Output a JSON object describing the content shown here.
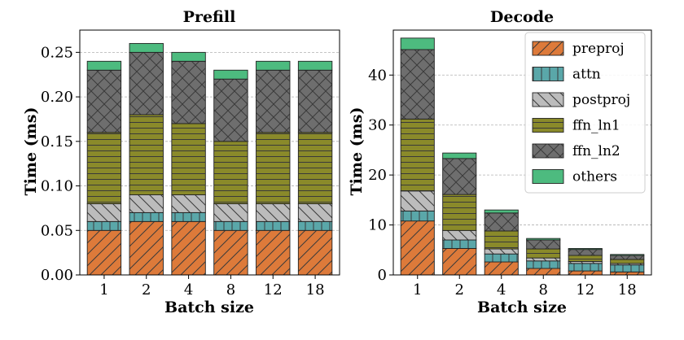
{
  "chart_data": [
    {
      "type": "bar",
      "stacked": true,
      "title": "Prefill",
      "xlabel": "Batch size",
      "ylabel": "Time (ms)",
      "categories": [
        "1",
        "2",
        "4",
        "8",
        "12",
        "18"
      ],
      "ylim": [
        0,
        0.275
      ],
      "yticks": [
        "0.00",
        "0.05",
        "0.10",
        "0.15",
        "0.20",
        "0.25"
      ],
      "grid": "horizontal-dashed",
      "series": [
        {
          "name": "preproj",
          "values": [
            0.05,
            0.06,
            0.06,
            0.05,
            0.05,
            0.05
          ]
        },
        {
          "name": "attn",
          "values": [
            0.01,
            0.01,
            0.01,
            0.01,
            0.01,
            0.01
          ]
        },
        {
          "name": "postproj",
          "values": [
            0.02,
            0.02,
            0.02,
            0.02,
            0.02,
            0.02
          ]
        },
        {
          "name": "ffn_ln1",
          "values": [
            0.08,
            0.09,
            0.08,
            0.07,
            0.08,
            0.08
          ]
        },
        {
          "name": "ffn_ln2",
          "values": [
            0.07,
            0.07,
            0.07,
            0.07,
            0.07,
            0.07
          ]
        },
        {
          "name": "others",
          "values": [
            0.01,
            0.01,
            0.01,
            0.01,
            0.01,
            0.01
          ]
        }
      ]
    },
    {
      "type": "bar",
      "stacked": true,
      "title": "Decode",
      "xlabel": "Batch size",
      "ylabel": "Time (ms)",
      "categories": [
        "1",
        "2",
        "4",
        "8",
        "12",
        "18"
      ],
      "ylim": [
        0,
        49
      ],
      "yticks": [
        "0",
        "10",
        "20",
        "30",
        "40"
      ],
      "grid": "horizontal-dashed",
      "legend": "top-right",
      "series": [
        {
          "name": "preproj",
          "values": [
            10.8,
            5.3,
            2.6,
            1.3,
            0.8,
            0.6
          ]
        },
        {
          "name": "attn",
          "values": [
            2.0,
            1.7,
            1.6,
            1.5,
            1.5,
            1.4
          ]
        },
        {
          "name": "postproj",
          "values": [
            4.0,
            1.9,
            1.0,
            0.6,
            0.4,
            0.3
          ]
        },
        {
          "name": "ffn_ln1",
          "values": [
            14.4,
            7.2,
            3.6,
            1.8,
            1.2,
            0.8
          ]
        },
        {
          "name": "ffn_ln2",
          "values": [
            13.9,
            7.2,
            3.6,
            1.8,
            1.2,
            0.8
          ]
        },
        {
          "name": "others",
          "values": [
            2.3,
            1.1,
            0.6,
            0.3,
            0.2,
            0.2
          ]
        }
      ]
    }
  ],
  "style": {
    "series_colors": [
      "#dd7a3a",
      "#5aa7a9",
      "#bcbcbc",
      "#8a8a2a",
      "#6e6e6e",
      "#4dbb7f"
    ],
    "hatches": [
      "diag-forward",
      "vertical",
      "diag-back",
      "horizontal",
      "cross",
      "none"
    ]
  }
}
